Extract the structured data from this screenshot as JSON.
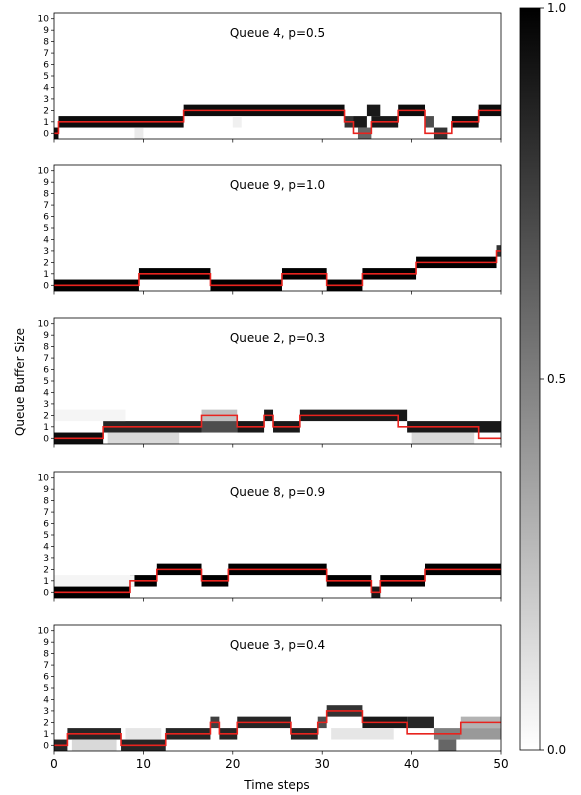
{
  "figure": {
    "ylabel": "Queue Buffer Size",
    "xlabel": "Time steps",
    "colorbar": {
      "ticks": [
        "0.0",
        "0.5",
        "1.0"
      ],
      "min": 0,
      "max": 1,
      "colormap": "gray_r"
    },
    "line_color": "#e8231e"
  },
  "chart_data": [
    {
      "type": "heatmap",
      "title": "Queue 4, p=0.5",
      "x_ticks": [
        "0",
        "10",
        "20",
        "30",
        "40",
        "50"
      ],
      "y_ticks": [
        "0",
        "1",
        "2",
        "3",
        "4",
        "5",
        "6",
        "7",
        "8",
        "9",
        "10"
      ],
      "xlim": [
        0,
        50
      ],
      "ylim": [
        -0.5,
        10.5
      ],
      "line": [
        {
          "x_start": 0,
          "x_end": 0.5,
          "y": 0
        },
        {
          "x_start": 0.5,
          "x_end": 14.5,
          "y": 1
        },
        {
          "x_start": 14.5,
          "x_end": 32.5,
          "y": 2
        },
        {
          "x_start": 32.5,
          "x_end": 33.5,
          "y": 1
        },
        {
          "x_start": 33.5,
          "x_end": 35.5,
          "y": 0
        },
        {
          "x_start": 35.5,
          "x_end": 38.5,
          "y": 1
        },
        {
          "x_start": 38.5,
          "x_end": 41.5,
          "y": 2
        },
        {
          "x_start": 41.5,
          "x_end": 44.5,
          "y": 0
        },
        {
          "x_start": 44.5,
          "x_end": 47.5,
          "y": 1
        },
        {
          "x_start": 47.5,
          "x_end": 50,
          "y": 2
        }
      ],
      "heat": [
        {
          "x_start": 0,
          "x_end": 0.5,
          "y": 0,
          "v": 0.95
        },
        {
          "x_start": 0.5,
          "x_end": 14.5,
          "y": 1,
          "v": 0.95
        },
        {
          "x_start": 14.5,
          "x_end": 32.5,
          "y": 2,
          "v": 0.95
        },
        {
          "x_start": 32.5,
          "x_end": 33.5,
          "y": 1,
          "v": 0.8
        },
        {
          "x_start": 33.5,
          "x_end": 35,
          "y": 1,
          "v": 0.9
        },
        {
          "x_start": 34,
          "x_end": 35.5,
          "y": 0,
          "v": 0.6
        },
        {
          "x_start": 35.5,
          "x_end": 38.5,
          "y": 1,
          "v": 0.9
        },
        {
          "x_start": 35,
          "x_end": 36.5,
          "y": 2,
          "v": 0.9
        },
        {
          "x_start": 38.5,
          "x_end": 41.5,
          "y": 2,
          "v": 0.95
        },
        {
          "x_start": 41.5,
          "x_end": 42.5,
          "y": 1,
          "v": 0.7
        },
        {
          "x_start": 42.5,
          "x_end": 44,
          "y": 0,
          "v": 0.8
        },
        {
          "x_start": 44.5,
          "x_end": 47.5,
          "y": 1,
          "v": 0.95
        },
        {
          "x_start": 47.5,
          "x_end": 50,
          "y": 2,
          "v": 0.95
        },
        {
          "x_start": 9,
          "x_end": 10,
          "y": 0,
          "v": 0.08
        },
        {
          "x_start": 20,
          "x_end": 21,
          "y": 1,
          "v": 0.06
        }
      ]
    },
    {
      "type": "heatmap",
      "title": "Queue 9, p=1.0",
      "x_ticks": [
        "0",
        "10",
        "20",
        "30",
        "40",
        "50"
      ],
      "y_ticks": [
        "0",
        "1",
        "2",
        "3",
        "4",
        "5",
        "6",
        "7",
        "8",
        "9",
        "10"
      ],
      "xlim": [
        0,
        50
      ],
      "ylim": [
        -0.5,
        10.5
      ],
      "line": [
        {
          "x_start": 0,
          "x_end": 9.5,
          "y": 0
        },
        {
          "x_start": 9.5,
          "x_end": 17.5,
          "y": 1
        },
        {
          "x_start": 17.5,
          "x_end": 25.5,
          "y": 0
        },
        {
          "x_start": 25.5,
          "x_end": 30.5,
          "y": 1
        },
        {
          "x_start": 30.5,
          "x_end": 34.5,
          "y": 0
        },
        {
          "x_start": 34.5,
          "x_end": 40.5,
          "y": 1
        },
        {
          "x_start": 40.5,
          "x_end": 49.5,
          "y": 2
        },
        {
          "x_start": 49.5,
          "x_end": 50,
          "y": 3
        }
      ],
      "heat": [
        {
          "x_start": 0,
          "x_end": 9.5,
          "y": 0,
          "v": 1
        },
        {
          "x_start": 9.5,
          "x_end": 17.5,
          "y": 1,
          "v": 1
        },
        {
          "x_start": 17.5,
          "x_end": 25.5,
          "y": 0,
          "v": 1
        },
        {
          "x_start": 25.5,
          "x_end": 30.5,
          "y": 1,
          "v": 1
        },
        {
          "x_start": 30.5,
          "x_end": 34.5,
          "y": 0,
          "v": 1
        },
        {
          "x_start": 34.5,
          "x_end": 40.5,
          "y": 1,
          "v": 1
        },
        {
          "x_start": 40.5,
          "x_end": 49.5,
          "y": 2,
          "v": 1
        },
        {
          "x_start": 49.5,
          "x_end": 50,
          "y": 3,
          "v": 0.8
        }
      ]
    },
    {
      "type": "heatmap",
      "title": "Queue 2, p=0.3",
      "x_ticks": [
        "0",
        "10",
        "20",
        "30",
        "40",
        "50"
      ],
      "y_ticks": [
        "0",
        "1",
        "2",
        "3",
        "4",
        "5",
        "6",
        "7",
        "8",
        "9",
        "10"
      ],
      "xlim": [
        0,
        50
      ],
      "ylim": [
        -0.5,
        10.5
      ],
      "line": [
        {
          "x_start": 0,
          "x_end": 5.5,
          "y": 0
        },
        {
          "x_start": 5.5,
          "x_end": 16.5,
          "y": 1
        },
        {
          "x_start": 16.5,
          "x_end": 20.5,
          "y": 2
        },
        {
          "x_start": 20.5,
          "x_end": 23.5,
          "y": 1
        },
        {
          "x_start": 23.5,
          "x_end": 24.5,
          "y": 2
        },
        {
          "x_start": 24.5,
          "x_end": 27.5,
          "y": 1
        },
        {
          "x_start": 27.5,
          "x_end": 38.5,
          "y": 2
        },
        {
          "x_start": 38.5,
          "x_end": 47.5,
          "y": 1
        },
        {
          "x_start": 47.5,
          "x_end": 50,
          "y": 0
        }
      ],
      "heat": [
        {
          "x_start": 0,
          "x_end": 5.5,
          "y": 0,
          "v": 0.95
        },
        {
          "x_start": 5.5,
          "x_end": 16.5,
          "y": 1,
          "v": 0.85
        },
        {
          "x_start": 16.5,
          "x_end": 20.5,
          "y": 2,
          "v": 0.25
        },
        {
          "x_start": 16.5,
          "x_end": 20.5,
          "y": 1,
          "v": 0.7
        },
        {
          "x_start": 20.5,
          "x_end": 23.5,
          "y": 1,
          "v": 0.9
        },
        {
          "x_start": 23.5,
          "x_end": 24.5,
          "y": 2,
          "v": 0.9
        },
        {
          "x_start": 24.5,
          "x_end": 27.5,
          "y": 1,
          "v": 0.9
        },
        {
          "x_start": 27.5,
          "x_end": 39.5,
          "y": 2,
          "v": 0.9
        },
        {
          "x_start": 39.5,
          "x_end": 50,
          "y": 1,
          "v": 0.9
        },
        {
          "x_start": 6,
          "x_end": 14,
          "y": 0,
          "v": 0.15
        },
        {
          "x_start": 40,
          "x_end": 47,
          "y": 0,
          "v": 0.15
        },
        {
          "x_start": 0,
          "x_end": 8,
          "y": 2,
          "v": 0.04
        }
      ]
    },
    {
      "type": "heatmap",
      "title": "Queue 8, p=0.9",
      "x_ticks": [
        "0",
        "10",
        "20",
        "30",
        "40",
        "50"
      ],
      "y_ticks": [
        "0",
        "1",
        "2",
        "3",
        "4",
        "5",
        "6",
        "7",
        "8",
        "9",
        "10"
      ],
      "xlim": [
        0,
        50
      ],
      "ylim": [
        -0.5,
        10.5
      ],
      "line": [
        {
          "x_start": 0,
          "x_end": 8.5,
          "y": 0
        },
        {
          "x_start": 8.5,
          "x_end": 11.5,
          "y": 1
        },
        {
          "x_start": 11.5,
          "x_end": 16.5,
          "y": 2
        },
        {
          "x_start": 16.5,
          "x_end": 19.5,
          "y": 1
        },
        {
          "x_start": 19.5,
          "x_end": 30.5,
          "y": 2
        },
        {
          "x_start": 30.5,
          "x_end": 35.5,
          "y": 1
        },
        {
          "x_start": 35.5,
          "x_end": 36.5,
          "y": 0
        },
        {
          "x_start": 36.5,
          "x_end": 41.5,
          "y": 1
        },
        {
          "x_start": 41.5,
          "x_end": 50,
          "y": 2
        }
      ],
      "heat": [
        {
          "x_start": 0,
          "x_end": 8.5,
          "y": 0,
          "v": 1
        },
        {
          "x_start": 8.5,
          "x_end": 11.5,
          "y": 1,
          "v": 1
        },
        {
          "x_start": 11.5,
          "x_end": 16.5,
          "y": 2,
          "v": 1
        },
        {
          "x_start": 16.5,
          "x_end": 19.5,
          "y": 1,
          "v": 1
        },
        {
          "x_start": 19.5,
          "x_end": 30.5,
          "y": 2,
          "v": 1
        },
        {
          "x_start": 30.5,
          "x_end": 35.5,
          "y": 1,
          "v": 1
        },
        {
          "x_start": 35.5,
          "x_end": 36.5,
          "y": 0,
          "v": 0.9
        },
        {
          "x_start": 36.5,
          "x_end": 41.5,
          "y": 1,
          "v": 1
        },
        {
          "x_start": 41.5,
          "x_end": 50,
          "y": 2,
          "v": 1
        },
        {
          "x_start": 0,
          "x_end": 9,
          "y": 1,
          "v": 0.04
        }
      ]
    },
    {
      "type": "heatmap",
      "title": "Queue 3, p=0.4",
      "x_ticks": [
        "0",
        "10",
        "20",
        "30",
        "40",
        "50"
      ],
      "y_ticks": [
        "0",
        "1",
        "2",
        "3",
        "4",
        "5",
        "6",
        "7",
        "8",
        "9",
        "10"
      ],
      "xlim": [
        0,
        50
      ],
      "ylim": [
        -0.5,
        10.5
      ],
      "line": [
        {
          "x_start": 0,
          "x_end": 1.5,
          "y": 0
        },
        {
          "x_start": 1.5,
          "x_end": 7.5,
          "y": 1
        },
        {
          "x_start": 7.5,
          "x_end": 12.5,
          "y": 0
        },
        {
          "x_start": 12.5,
          "x_end": 17.5,
          "y": 1
        },
        {
          "x_start": 17.5,
          "x_end": 18.5,
          "y": 2
        },
        {
          "x_start": 18.5,
          "x_end": 20.5,
          "y": 1
        },
        {
          "x_start": 20.5,
          "x_end": 26.5,
          "y": 2
        },
        {
          "x_start": 26.5,
          "x_end": 29.5,
          "y": 1
        },
        {
          "x_start": 29.5,
          "x_end": 30.5,
          "y": 2
        },
        {
          "x_start": 30.5,
          "x_end": 34.5,
          "y": 3
        },
        {
          "x_start": 34.5,
          "x_end": 39.5,
          "y": 2
        },
        {
          "x_start": 39.5,
          "x_end": 45.5,
          "y": 1
        },
        {
          "x_start": 45.5,
          "x_end": 50,
          "y": 2
        }
      ],
      "heat": [
        {
          "x_start": 0,
          "x_end": 1.5,
          "y": 0,
          "v": 0.85
        },
        {
          "x_start": 1.5,
          "x_end": 7.5,
          "y": 1,
          "v": 0.85
        },
        {
          "x_start": 7.5,
          "x_end": 12.5,
          "y": 0,
          "v": 0.85
        },
        {
          "x_start": 12.5,
          "x_end": 17.5,
          "y": 1,
          "v": 0.85
        },
        {
          "x_start": 17.5,
          "x_end": 18.5,
          "y": 2,
          "v": 0.75
        },
        {
          "x_start": 18.5,
          "x_end": 20.5,
          "y": 1,
          "v": 0.85
        },
        {
          "x_start": 20.5,
          "x_end": 26.5,
          "y": 2,
          "v": 0.85
        },
        {
          "x_start": 26.5,
          "x_end": 29.5,
          "y": 1,
          "v": 0.85
        },
        {
          "x_start": 29.5,
          "x_end": 30.5,
          "y": 2,
          "v": 0.7
        },
        {
          "x_start": 30.5,
          "x_end": 34.5,
          "y": 3,
          "v": 0.8
        },
        {
          "x_start": 34.5,
          "x_end": 39.5,
          "y": 2,
          "v": 0.9
        },
        {
          "x_start": 39.5,
          "x_end": 42.5,
          "y": 2,
          "v": 0.85
        },
        {
          "x_start": 42.5,
          "x_end": 45.5,
          "y": 1,
          "v": 0.5
        },
        {
          "x_start": 43,
          "x_end": 45,
          "y": 0,
          "v": 0.6
        },
        {
          "x_start": 45.5,
          "x_end": 50,
          "y": 1,
          "v": 0.4
        },
        {
          "x_start": 45.5,
          "x_end": 50,
          "y": 2,
          "v": 0.3
        },
        {
          "x_start": 2,
          "x_end": 7,
          "y": 0,
          "v": 0.15
        },
        {
          "x_start": 8,
          "x_end": 12,
          "y": 1,
          "v": 0.1
        },
        {
          "x_start": 31,
          "x_end": 38,
          "y": 1,
          "v": 0.1
        }
      ]
    }
  ]
}
